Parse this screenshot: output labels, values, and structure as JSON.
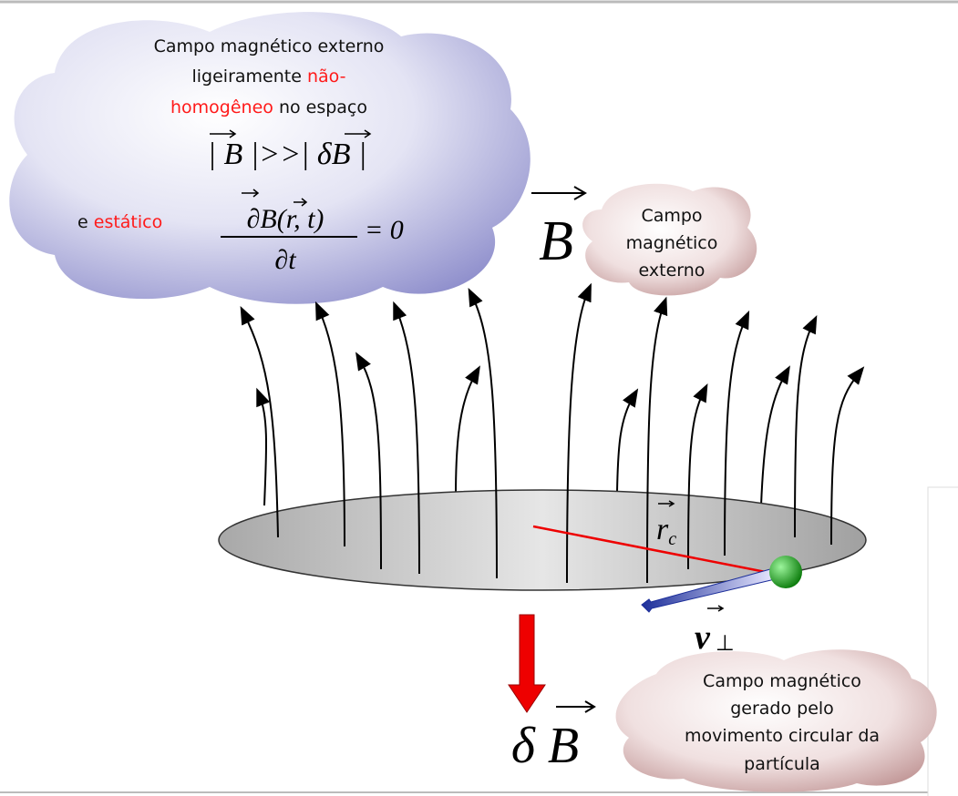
{
  "condition_cloud": {
    "line1": "Campo magnético externo",
    "line2_plain": "ligeiramente",
    "line2_red": "não-",
    "line3_red": "homogêneo",
    "line3_plain": "no espaço",
    "inequality": "| B |>>| δB |",
    "static_plain": "e",
    "static_red": "estático",
    "numerator": "∂B(r, t)",
    "denominator": "∂t",
    "equals": "= 0"
  },
  "field_label": "B",
  "external_cloud": {
    "lines": [
      "Campo",
      "magnético",
      "externo"
    ]
  },
  "radius_label": {
    "symbol": "r",
    "subscript": "c"
  },
  "velocity_label": {
    "symbol": "v",
    "subscript": "⊥"
  },
  "induced_label": "δ B",
  "induced_cloud": {
    "lines": [
      "Campo magnético",
      "gerado pelo",
      "movimento circular da",
      "partícula"
    ]
  }
}
